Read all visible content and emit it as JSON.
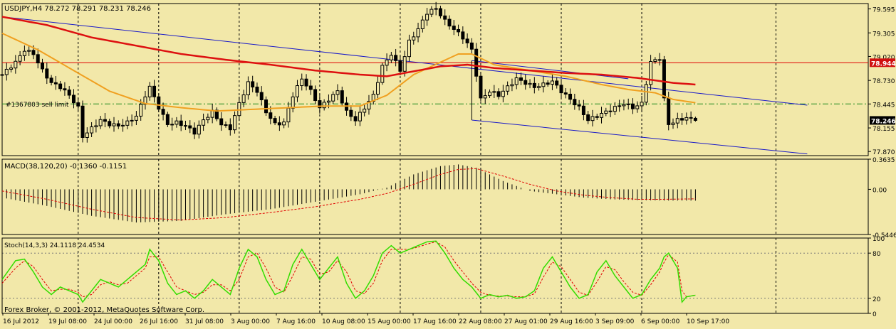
{
  "header": {
    "symbol_info": "USDJPY,H4  78.272 78.291 78.231 78.246",
    "order_label": "#1367803 sell limit",
    "copyright": "Forex Broker, © 2001-2012, MetaQuotes Software Corp."
  },
  "colors": {
    "background": "#F2E8A9",
    "candle": "#000000",
    "ma_fast": "#F0A020",
    "ma_slow": "#DD1010",
    "trendline": "#1A1AC8",
    "hline_red": "#E00000",
    "order_line": "#1E8A1E",
    "macd_hist": "#000000",
    "macd_signal": "#E00000",
    "stoch_main": "#33DD00",
    "stoch_signal": "#E00000",
    "price_tag": "#D01010",
    "bid_tag": "#000000"
  },
  "chart_data": [
    {
      "type": "candlestick",
      "symbol": "USDJPY",
      "timeframe": "H4",
      "ohlc_current": {
        "open": 78.272,
        "high": 78.291,
        "low": 78.231,
        "close": 78.246
      },
      "ylim": [
        77.82,
        79.66
      ],
      "y_ticks": [
        "79.595",
        "79.305",
        "79.020",
        "78.730",
        "78.445",
        "78.155",
        "77.870"
      ],
      "x_ticks": [
        "16 Jul 2012",
        "19 Jul 08:00",
        "24 Jul 00:00",
        "26 Jul 16:00",
        "31 Jul 08:00",
        "3 Aug 00:00",
        "7 Aug 16:00",
        "10 Aug 08:00",
        "15 Aug 00:00",
        "17 Aug 16:00",
        "22 Aug 08:00",
        "27 Aug 01:00",
        "29 Aug 16:00",
        "3 Sep 09:00",
        "6 Sep 00:00",
        "10 Sep 17:00"
      ],
      "close_path": [
        [
          0,
          78.8
        ],
        [
          3,
          78.95
        ],
        [
          5,
          79.1
        ],
        [
          7,
          79.05
        ],
        [
          9,
          78.85
        ],
        [
          11,
          78.7
        ],
        [
          13,
          78.65
        ],
        [
          15,
          78.55
        ],
        [
          17,
          78.4
        ],
        [
          18,
          78.05
        ],
        [
          20,
          78.15
        ],
        [
          22,
          78.25
        ],
        [
          24,
          78.2
        ],
        [
          26,
          78.18
        ],
        [
          28,
          78.22
        ],
        [
          30,
          78.3
        ],
        [
          32,
          78.55
        ],
        [
          33,
          78.65
        ],
        [
          35,
          78.4
        ],
        [
          37,
          78.2
        ],
        [
          39,
          78.22
        ],
        [
          41,
          78.18
        ],
        [
          43,
          78.1
        ],
        [
          45,
          78.25
        ],
        [
          47,
          78.35
        ],
        [
          49,
          78.2
        ],
        [
          51,
          78.15
        ],
        [
          53,
          78.45
        ],
        [
          55,
          78.7
        ],
        [
          57,
          78.6
        ],
        [
          59,
          78.35
        ],
        [
          61,
          78.2
        ],
        [
          63,
          78.22
        ],
        [
          65,
          78.55
        ],
        [
          67,
          78.75
        ],
        [
          69,
          78.6
        ],
        [
          71,
          78.4
        ],
        [
          73,
          78.5
        ],
        [
          75,
          78.6
        ],
        [
          77,
          78.35
        ],
        [
          79,
          78.25
        ],
        [
          81,
          78.4
        ],
        [
          83,
          78.55
        ],
        [
          85,
          78.9
        ],
        [
          87,
          79.05
        ],
        [
          89,
          78.85
        ],
        [
          91,
          79.2
        ],
        [
          93,
          79.35
        ],
        [
          95,
          79.55
        ],
        [
          97,
          79.6
        ],
        [
          99,
          79.45
        ],
        [
          101,
          79.35
        ],
        [
          103,
          79.25
        ],
        [
          105,
          79.1
        ],
        [
          107,
          78.5
        ],
        [
          109,
          78.6
        ],
        [
          111,
          78.55
        ],
        [
          113,
          78.65
        ],
        [
          115,
          78.75
        ],
        [
          117,
          78.7
        ],
        [
          119,
          78.65
        ],
        [
          121,
          78.68
        ],
        [
          123,
          78.72
        ],
        [
          125,
          78.6
        ],
        [
          127,
          78.5
        ],
        [
          129,
          78.4
        ],
        [
          131,
          78.25
        ],
        [
          133,
          78.3
        ],
        [
          135,
          78.35
        ],
        [
          137,
          78.4
        ],
        [
          139,
          78.45
        ],
        [
          141,
          78.4
        ],
        [
          143,
          78.45
        ],
        [
          145,
          78.95
        ],
        [
          147,
          79.0
        ],
        [
          148,
          78.5
        ],
        [
          149,
          78.2
        ],
        [
          151,
          78.25
        ],
        [
          153,
          78.28
        ],
        [
          155,
          78.246
        ]
      ],
      "series": [
        {
          "name": "MA fast (orange)",
          "path": [
            [
              0,
              79.3
            ],
            [
              8,
              79.1
            ],
            [
              16,
              78.85
            ],
            [
              24,
              78.6
            ],
            [
              32,
              78.45
            ],
            [
              40,
              78.4
            ],
            [
              48,
              78.36
            ],
            [
              56,
              78.38
            ],
            [
              64,
              78.4
            ],
            [
              72,
              78.42
            ],
            [
              80,
              78.42
            ],
            [
              86,
              78.55
            ],
            [
              92,
              78.8
            ],
            [
              98,
              78.95
            ],
            [
              102,
              79.05
            ],
            [
              105,
              79.05
            ],
            [
              110,
              78.92
            ],
            [
              118,
              78.85
            ],
            [
              126,
              78.78
            ],
            [
              134,
              78.68
            ],
            [
              140,
              78.62
            ],
            [
              146,
              78.58
            ],
            [
              150,
              78.5
            ],
            [
              155,
              78.46
            ]
          ]
        },
        {
          "name": "MA slow (red)",
          "path": [
            [
              0,
              79.5
            ],
            [
              10,
              79.4
            ],
            [
              20,
              79.25
            ],
            [
              30,
              79.15
            ],
            [
              40,
              79.05
            ],
            [
              50,
              78.98
            ],
            [
              60,
              78.92
            ],
            [
              70,
              78.85
            ],
            [
              80,
              78.8
            ],
            [
              86,
              78.78
            ],
            [
              92,
              78.84
            ],
            [
              98,
              78.9
            ],
            [
              104,
              78.92
            ],
            [
              110,
              78.88
            ],
            [
              118,
              78.85
            ],
            [
              126,
              78.82
            ],
            [
              134,
              78.8
            ],
            [
              142,
              78.76
            ],
            [
              150,
              78.7
            ],
            [
              155,
              78.68
            ]
          ]
        }
      ],
      "lines": {
        "horizontal_red": 78.944,
        "order_sell_limit": 78.445,
        "trend_upper": [
          [
            0,
            79.5
          ],
          [
            180,
            78.43
          ]
        ],
        "trend_channel": [
          [
            105,
            78.97
          ],
          [
            140,
            78.75
          ]
        ],
        "trend_lower": [
          [
            105,
            78.25
          ],
          [
            180,
            77.84
          ]
        ]
      },
      "price_tags": {
        "level": "78.944",
        "bid": "78.246"
      }
    },
    {
      "type": "bar",
      "name": "MACD(38,120,20) -0.1360 -0.1151",
      "ylim": [
        -0.5446,
        0.3635
      ],
      "y_ticks": [
        "0.3635",
        "0.00",
        "-0.5446"
      ],
      "hist_path": [
        [
          0,
          -0.1
        ],
        [
          10,
          -0.2
        ],
        [
          20,
          -0.32
        ],
        [
          30,
          -0.4
        ],
        [
          40,
          -0.38
        ],
        [
          50,
          -0.3
        ],
        [
          60,
          -0.24
        ],
        [
          70,
          -0.15
        ],
        [
          80,
          -0.06
        ],
        [
          86,
          0.02
        ],
        [
          92,
          0.18
        ],
        [
          98,
          0.28
        ],
        [
          102,
          0.3
        ],
        [
          106,
          0.26
        ],
        [
          112,
          0.1
        ],
        [
          118,
          -0.02
        ],
        [
          124,
          -0.06
        ],
        [
          130,
          -0.1
        ],
        [
          136,
          -0.12
        ],
        [
          142,
          -0.13
        ],
        [
          148,
          -0.135
        ],
        [
          155,
          -0.136
        ]
      ],
      "signal_path": [
        [
          0,
          -0.02
        ],
        [
          10,
          -0.12
        ],
        [
          20,
          -0.24
        ],
        [
          30,
          -0.34
        ],
        [
          40,
          -0.37
        ],
        [
          50,
          -0.34
        ],
        [
          60,
          -0.28
        ],
        [
          70,
          -0.21
        ],
        [
          80,
          -0.12
        ],
        [
          86,
          -0.05
        ],
        [
          92,
          0.06
        ],
        [
          98,
          0.18
        ],
        [
          102,
          0.24
        ],
        [
          106,
          0.25
        ],
        [
          112,
          0.16
        ],
        [
          118,
          0.06
        ],
        [
          124,
          -0.02
        ],
        [
          130,
          -0.07
        ],
        [
          136,
          -0.1
        ],
        [
          142,
          -0.12
        ],
        [
          148,
          -0.12
        ],
        [
          155,
          -0.115
        ]
      ]
    },
    {
      "type": "line",
      "name": "Stoch(14,3,3) 24.1118 24.4534",
      "ylim": [
        0,
        100
      ],
      "y_ticks": [
        "100",
        "80",
        "20",
        "0"
      ],
      "main_path": [
        [
          0,
          45
        ],
        [
          3,
          70
        ],
        [
          5,
          72
        ],
        [
          7,
          55
        ],
        [
          9,
          35
        ],
        [
          11,
          25
        ],
        [
          13,
          35
        ],
        [
          15,
          30
        ],
        [
          17,
          25
        ],
        [
          18,
          15
        ],
        [
          20,
          30
        ],
        [
          22,
          45
        ],
        [
          24,
          40
        ],
        [
          26,
          35
        ],
        [
          28,
          45
        ],
        [
          30,
          55
        ],
        [
          32,
          65
        ],
        [
          33,
          85
        ],
        [
          35,
          70
        ],
        [
          37,
          40
        ],
        [
          39,
          25
        ],
        [
          41,
          30
        ],
        [
          43,
          20
        ],
        [
          45,
          30
        ],
        [
          47,
          45
        ],
        [
          49,
          35
        ],
        [
          51,
          25
        ],
        [
          53,
          60
        ],
        [
          55,
          85
        ],
        [
          57,
          75
        ],
        [
          59,
          45
        ],
        [
          61,
          25
        ],
        [
          63,
          30
        ],
        [
          65,
          65
        ],
        [
          67,
          85
        ],
        [
          69,
          65
        ],
        [
          71,
          45
        ],
        [
          73,
          60
        ],
        [
          75,
          75
        ],
        [
          77,
          40
        ],
        [
          79,
          20
        ],
        [
          81,
          30
        ],
        [
          83,
          50
        ],
        [
          85,
          80
        ],
        [
          87,
          90
        ],
        [
          89,
          80
        ],
        [
          91,
          85
        ],
        [
          93,
          90
        ],
        [
          95,
          95
        ],
        [
          97,
          96
        ],
        [
          99,
          80
        ],
        [
          101,
          60
        ],
        [
          103,
          45
        ],
        [
          105,
          35
        ],
        [
          107,
          20
        ],
        [
          109,
          25
        ],
        [
          111,
          22
        ],
        [
          113,
          24
        ],
        [
          115,
          20
        ],
        [
          117,
          22
        ],
        [
          119,
          30
        ],
        [
          121,
          60
        ],
        [
          123,
          75
        ],
        [
          125,
          55
        ],
        [
          127,
          35
        ],
        [
          129,
          20
        ],
        [
          131,
          25
        ],
        [
          133,
          55
        ],
        [
          135,
          70
        ],
        [
          137,
          50
        ],
        [
          139,
          35
        ],
        [
          141,
          20
        ],
        [
          143,
          25
        ],
        [
          145,
          45
        ],
        [
          147,
          60
        ],
        [
          148,
          75
        ],
        [
          149,
          80
        ],
        [
          151,
          60
        ],
        [
          152,
          15
        ],
        [
          153,
          22
        ],
        [
          155,
          24.1118
        ]
      ],
      "signal_path": [
        [
          0,
          40
        ],
        [
          3,
          60
        ],
        [
          5,
          70
        ],
        [
          7,
          62
        ],
        [
          9,
          45
        ],
        [
          11,
          30
        ],
        [
          13,
          32
        ],
        [
          15,
          32
        ],
        [
          17,
          28
        ],
        [
          18,
          22
        ],
        [
          20,
          25
        ],
        [
          22,
          38
        ],
        [
          24,
          42
        ],
        [
          26,
          38
        ],
        [
          28,
          40
        ],
        [
          30,
          50
        ],
        [
          32,
          60
        ],
        [
          33,
          75
        ],
        [
          35,
          75
        ],
        [
          37,
          55
        ],
        [
          39,
          35
        ],
        [
          41,
          30
        ],
        [
          43,
          25
        ],
        [
          45,
          28
        ],
        [
          47,
          38
        ],
        [
          49,
          38
        ],
        [
          51,
          30
        ],
        [
          53,
          45
        ],
        [
          55,
          75
        ],
        [
          57,
          80
        ],
        [
          59,
          60
        ],
        [
          61,
          35
        ],
        [
          63,
          28
        ],
        [
          65,
          50
        ],
        [
          67,
          75
        ],
        [
          69,
          72
        ],
        [
          71,
          52
        ],
        [
          73,
          55
        ],
        [
          75,
          70
        ],
        [
          77,
          55
        ],
        [
          79,
          30
        ],
        [
          81,
          26
        ],
        [
          83,
          40
        ],
        [
          85,
          70
        ],
        [
          87,
          85
        ],
        [
          89,
          85
        ],
        [
          91,
          85
        ],
        [
          93,
          88
        ],
        [
          95,
          92
        ],
        [
          97,
          95
        ],
        [
          99,
          88
        ],
        [
          101,
          70
        ],
        [
          103,
          55
        ],
        [
          105,
          40
        ],
        [
          107,
          28
        ],
        [
          109,
          24
        ],
        [
          111,
          23
        ],
        [
          113,
          23
        ],
        [
          115,
          22
        ],
        [
          117,
          22
        ],
        [
          119,
          26
        ],
        [
          121,
          48
        ],
        [
          123,
          68
        ],
        [
          125,
          62
        ],
        [
          127,
          45
        ],
        [
          129,
          28
        ],
        [
          131,
          24
        ],
        [
          133,
          42
        ],
        [
          135,
          62
        ],
        [
          137,
          58
        ],
        [
          139,
          42
        ],
        [
          141,
          28
        ],
        [
          143,
          24
        ],
        [
          145,
          38
        ],
        [
          147,
          55
        ],
        [
          148,
          68
        ],
        [
          149,
          78
        ],
        [
          151,
          68
        ],
        [
          152,
          30
        ],
        [
          153,
          22
        ],
        [
          155,
          24.4534
        ]
      ]
    }
  ]
}
